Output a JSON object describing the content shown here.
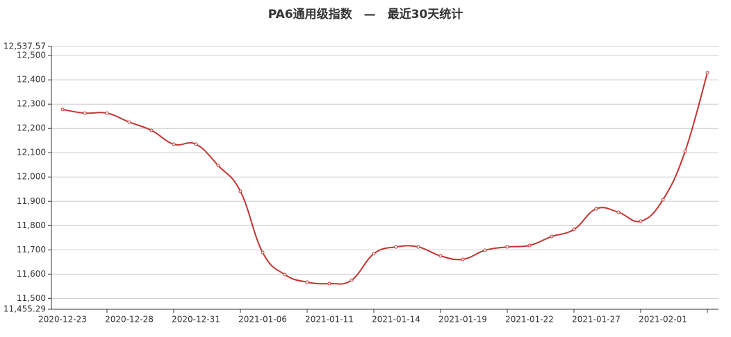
{
  "chart_data": {
    "type": "line",
    "title": "PA6通用级指数　—　最近30天统计",
    "categories": [
      "2020-12-23",
      null,
      null,
      "2020-12-28",
      null,
      null,
      "2020-12-31",
      null,
      null,
      "2021-01-06",
      null,
      null,
      "2021-01-11",
      null,
      null,
      "2021-01-14",
      null,
      null,
      "2021-01-19",
      null,
      null,
      "2021-01-22",
      null,
      null,
      "2021-01-27",
      null,
      null,
      "2021-02-01",
      null,
      null
    ],
    "values": [
      12278,
      12263,
      12263,
      12226,
      12192,
      12135,
      12135,
      12047,
      11941,
      11689,
      11598,
      11567,
      11561,
      11575,
      11684,
      11712,
      11712,
      11675,
      11661,
      11698,
      11712,
      11718,
      11755,
      11784,
      11869,
      11855,
      11818,
      11906,
      12106,
      12429
    ],
    "color": "#c23531",
    "ylim": [
      11455.29,
      12537.57
    ],
    "yticks": [
      {
        "value": 11455.29,
        "label": "11,455.29"
      },
      {
        "value": 11500,
        "label": "11,500"
      },
      {
        "value": 11600,
        "label": "11,600"
      },
      {
        "value": 11700,
        "label": "11,700"
      },
      {
        "value": 11800,
        "label": "11,800"
      },
      {
        "value": 11900,
        "label": "11,900"
      },
      {
        "value": 12000,
        "label": "12,000"
      },
      {
        "value": 12100,
        "label": "12,100"
      },
      {
        "value": 12200,
        "label": "12,200"
      },
      {
        "value": 12300,
        "label": "12,300"
      },
      {
        "value": 12400,
        "label": "12,400"
      },
      {
        "value": 12500,
        "label": "12,500"
      },
      {
        "value": 12537.57,
        "label": "12,537.57"
      }
    ],
    "grid": true
  }
}
